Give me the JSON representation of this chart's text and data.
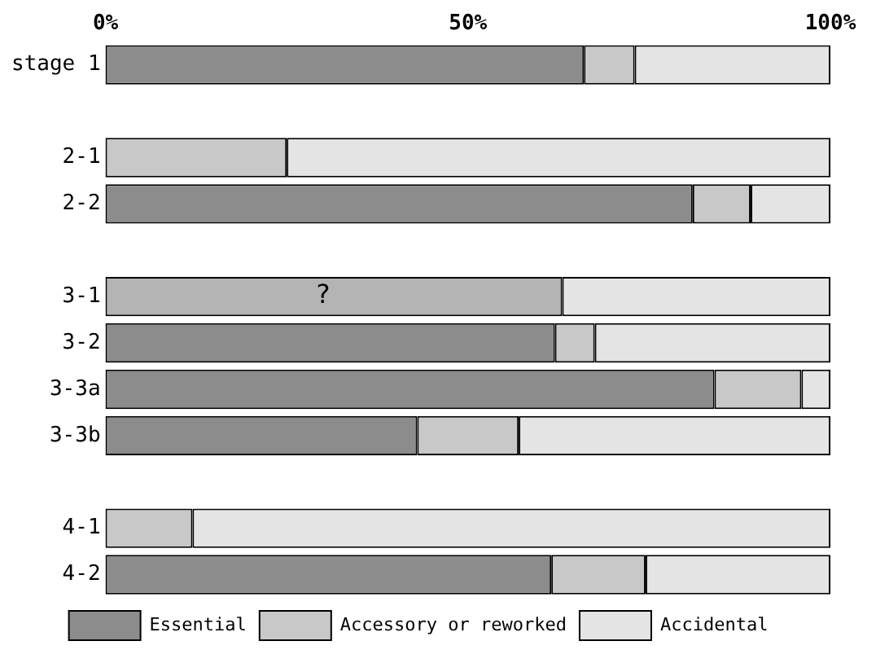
{
  "chart_data": {
    "type": "bar",
    "orientation": "horizontal",
    "stacked": true,
    "categories": [
      "stage 1",
      null,
      "2-1",
      "2-2",
      null,
      "3-1",
      "3-2",
      "3-3a",
      "3-3b",
      null,
      "4-1",
      "4-2"
    ],
    "series": [
      {
        "name": "Essential",
        "color": "#8c8c8c",
        "values": [
          66,
          null,
          0,
          81,
          null,
          0,
          62,
          84,
          43,
          null,
          0,
          61.5
        ]
      },
      {
        "color": "#b4b4b4",
        "values": [
          0,
          null,
          0,
          0,
          null,
          63,
          0,
          0,
          0,
          null,
          0,
          0
        ]
      },
      {
        "name": "Accessory or reworked",
        "color": "#c8c8c8",
        "values": [
          7,
          null,
          25,
          8,
          null,
          0,
          5.5,
          12,
          14,
          null,
          12,
          13
        ]
      },
      {
        "name": "Accidental",
        "color": "#e4e4e4",
        "values": [
          27,
          null,
          75,
          11,
          null,
          37,
          32.5,
          4,
          43,
          null,
          88,
          25.5
        ]
      }
    ],
    "xlim": [
      0,
      100
    ],
    "xticks": [
      {
        "value": 0,
        "label": "0%"
      },
      {
        "value": 50,
        "label": "50%"
      },
      {
        "value": 100,
        "label": "100%"
      }
    ],
    "grid": false,
    "legend": "bottom",
    "annotations": [
      {
        "text": "?",
        "x": 30,
        "y": "3-1"
      }
    ]
  }
}
